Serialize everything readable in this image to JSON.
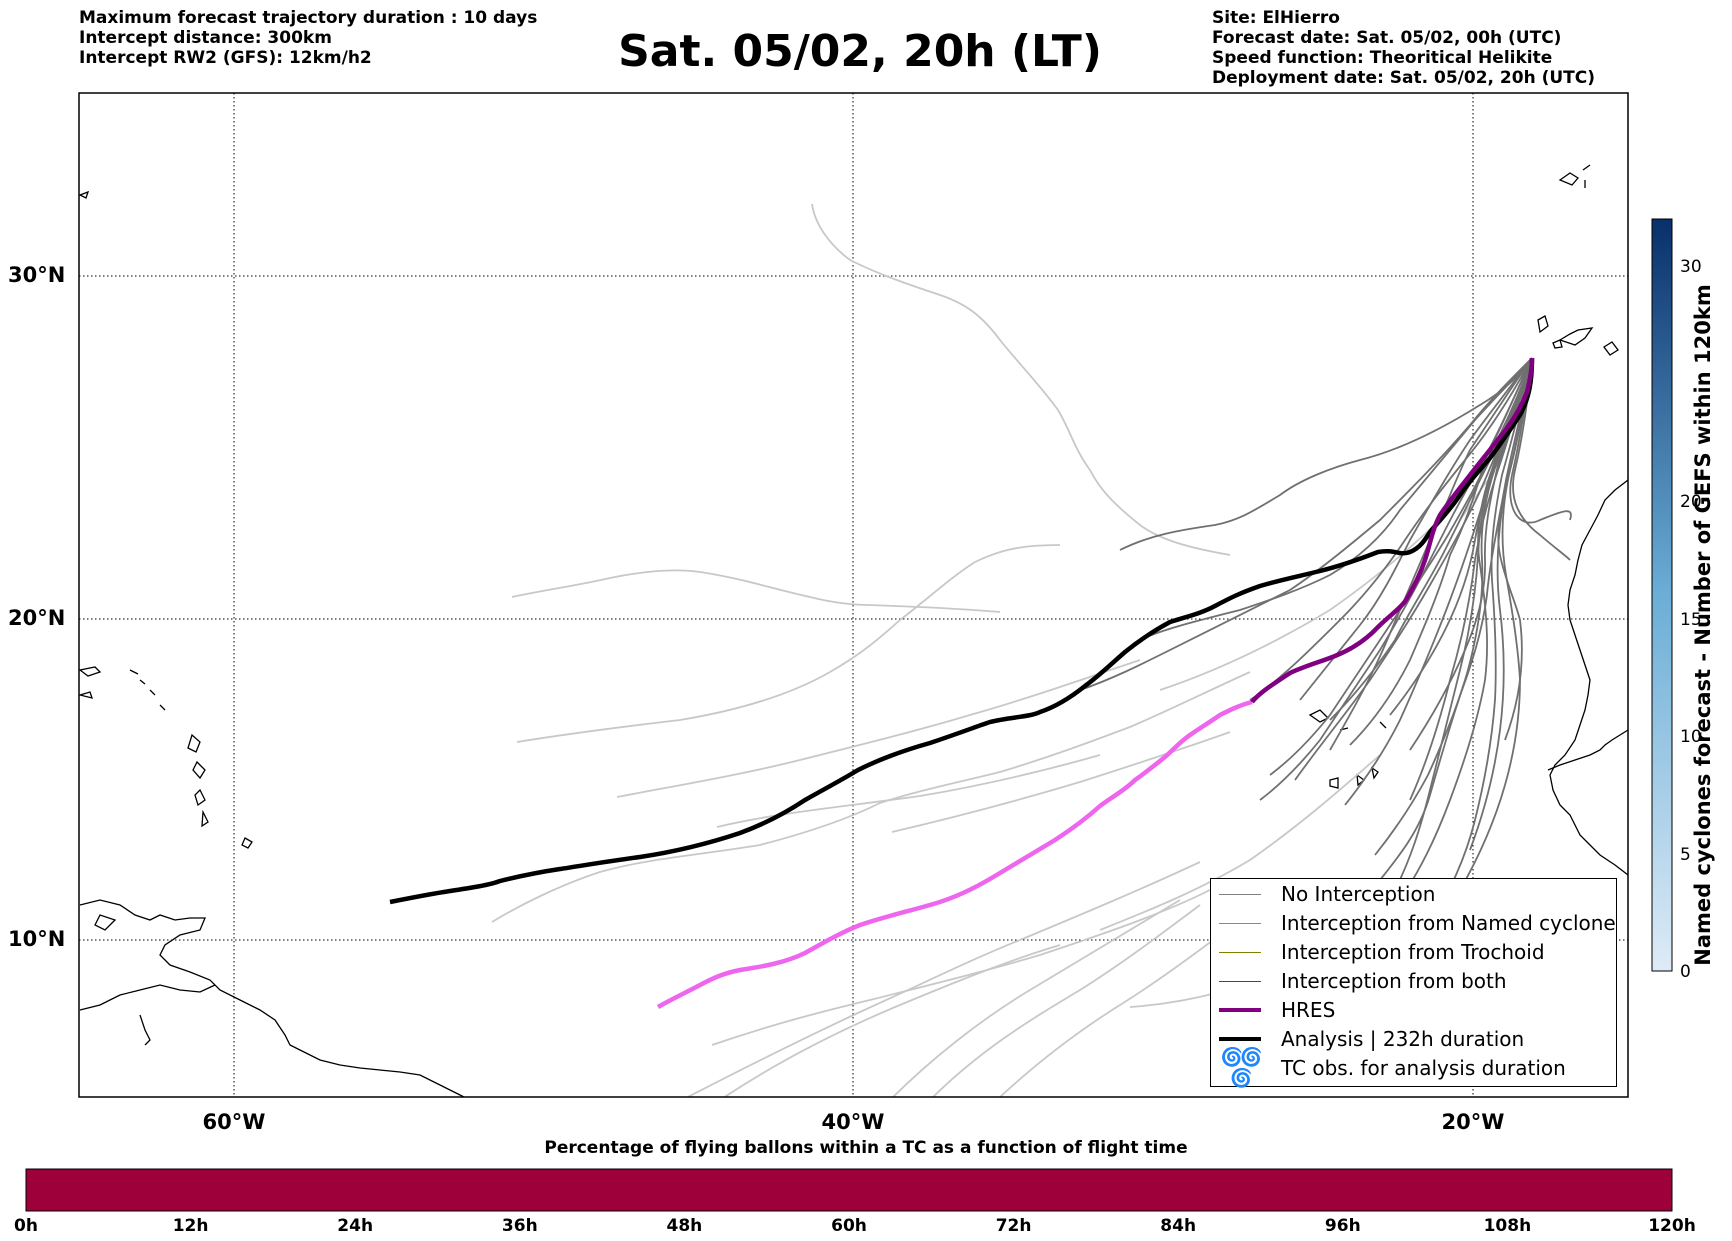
{
  "header": {
    "left": [
      "Maximum forecast trajectory duration : 10 days",
      "Intercept distance: 300km",
      "Intercept RW2 (GFS):  12km/h2"
    ],
    "title": "Sat. 05/02, 20h (LT)",
    "right": [
      "Site: ElHierro",
      "Forecast date: Sat. 05/02, 00h (UTC)",
      "Speed function: Theoritical Helikite",
      "Deployment date: Sat. 05/02, 20h (UTC)"
    ]
  },
  "map": {
    "latitude_labels": [
      "30°N",
      "20°N",
      "10°N"
    ],
    "longitude_labels": [
      "60°W",
      "40°W",
      "20°W"
    ],
    "grid": true
  },
  "legend": {
    "items": [
      {
        "label": "No Interception",
        "color": "#808080",
        "width": 1
      },
      {
        "label": "Interception from Named cyclone",
        "color": "#ff6a00",
        "width": 1
      },
      {
        "label": "Interception from Trochoid",
        "color": "#808000",
        "width": 1
      },
      {
        "label": "Interception from both",
        "color": "#008000",
        "width": 1
      },
      {
        "label": "HRES",
        "color": "#800080",
        "width": 4
      },
      {
        "label": "Analysis | 232h duration",
        "color": "#000000",
        "width": 4
      },
      {
        "label": "TC obs. for analysis duration",
        "icon": "tc-symbol-icon"
      }
    ]
  },
  "colorbar": {
    "label": "Named cyclones forecast - Number of GEFS within 120km",
    "ticks": [
      "0",
      "5",
      "10",
      "15",
      "20",
      "30"
    ],
    "colors": [
      "#deebf7",
      "#08306b"
    ]
  },
  "bottom": {
    "title": "Percentage of flying ballons within a TC as a function of flight time",
    "bar_color": "#9e003a",
    "ticks": [
      "0h",
      "12h",
      "24h",
      "36h",
      "48h",
      "60h",
      "72h",
      "84h",
      "96h",
      "108h",
      "120h"
    ]
  }
}
